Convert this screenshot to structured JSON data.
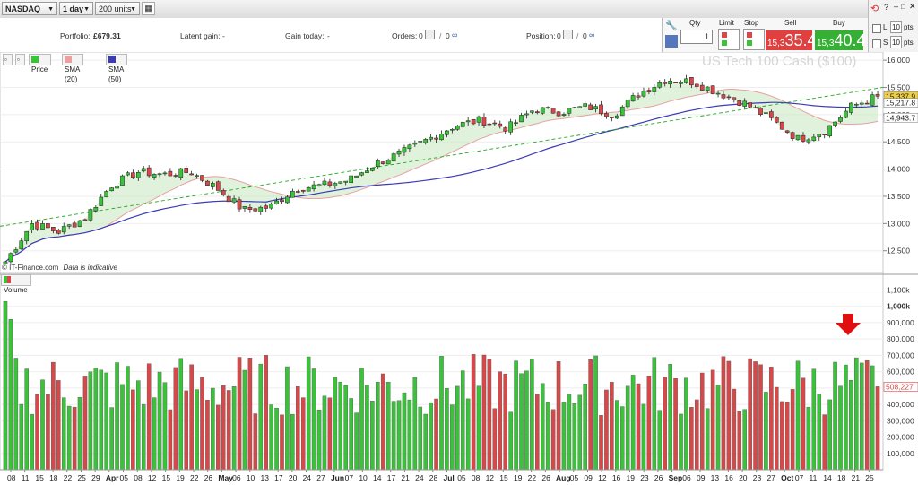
{
  "toolbar": {
    "market": "NASDAQ",
    "interval": "1 day",
    "units": "200 units"
  },
  "portfolio_row": {
    "portfolio_label": "Portfolio:",
    "portfolio_value": "£679.31",
    "latent_gain_label": "Latent gain:",
    "latent_gain_value": "-",
    "gain_today_label": "Gain today:",
    "gain_today_value": "-",
    "orders_label": "Orders:",
    "orders_count": "0",
    "orders_extra": "0",
    "position_label": "Position:",
    "position_count": "0",
    "position_extra": "0"
  },
  "trade_panel": {
    "qty_label": "Qty",
    "qty_value": "1",
    "limit_label": "Limit",
    "stop_label": "Stop",
    "sell_label": "Sell",
    "sell_small": "15,3",
    "sell_big": "35.4",
    "buy_label": "Buy",
    "buy_small": "15,3",
    "buy_big": "40.4"
  },
  "right_controls": {
    "l_label": "L",
    "l_value": "10",
    "l_unit": "pts",
    "s_label": "S",
    "s_value": "10",
    "s_unit": "pts"
  },
  "legend": {
    "price": "Price",
    "sma20": "SMA (20)",
    "sma50": "SMA (50)",
    "volume": "Volume"
  },
  "instrument_title": "US Tech 100 Cash ($100)",
  "attribution": "© IT-Finance.com",
  "indicative_note": "Data is indicative",
  "colors": {
    "up": "#39c339",
    "down": "#d94848",
    "sma20": "#e8a0a0",
    "sma50": "#3b3bb4",
    "trend": "#22aa22",
    "sell_bg": "#e04040",
    "buy_bg": "#35b035"
  },
  "price_axis": {
    "labels": [
      "16,000",
      "15,500",
      "15,000",
      "14,500",
      "14,000",
      "13,500",
      "13,000",
      "12,500"
    ],
    "values": [
      16000,
      15500,
      15000,
      14500,
      14000,
      13500,
      13000,
      12500
    ],
    "range": [
      12100,
      16150
    ],
    "markers": [
      {
        "label": "15,337.9",
        "value": 15337.9,
        "color": "#f0d040"
      },
      {
        "label": "15,217.8",
        "value": 15217.8,
        "color": "#ffffff"
      },
      {
        "label": "14,943.7",
        "value": 14943.7,
        "color": "#ffffff"
      }
    ]
  },
  "volume_axis": {
    "labels": [
      "1,100k",
      "1,000k",
      "900,000",
      "800,000",
      "700,000",
      "600,000",
      "500,000",
      "400,000",
      "300,000",
      "200,000",
      "100,000"
    ],
    "values": [
      1100000,
      1000000,
      900000,
      800000,
      700000,
      600000,
      500000,
      400000,
      300000,
      200000,
      100000
    ],
    "range": [
      0,
      1130000
    ],
    "marker": {
      "label": "508,227",
      "value": 508227
    }
  },
  "x_axis": {
    "labels": [
      "08",
      "11",
      "15",
      "18",
      "22",
      "25",
      "29",
      "Apr",
      "05",
      "08",
      "12",
      "15",
      "19",
      "22",
      "26",
      "May",
      "06",
      "10",
      "13",
      "17",
      "20",
      "24",
      "27",
      "Jun",
      "07",
      "10",
      "14",
      "17",
      "21",
      "24",
      "28",
      "Jul",
      "05",
      "08",
      "12",
      "15",
      "19",
      "22",
      "26",
      "Aug",
      "05",
      "09",
      "12",
      "16",
      "19",
      "23",
      "26",
      "Sep",
      "06",
      "09",
      "13",
      "16",
      "20",
      "23",
      "27",
      "Oct",
      "07",
      "11",
      "14",
      "18",
      "21",
      "25"
    ],
    "bold": [
      "Apr",
      "May",
      "Jun",
      "Jul",
      "Aug",
      "Sep",
      "Oct"
    ]
  },
  "chart_data": {
    "type": "candlestick",
    "title": "US Tech 100 Cash ($100)",
    "period": "1 day",
    "x_range": [
      "08 Mar",
      "25 Oct"
    ],
    "closes_weekly_approx": [
      {
        "week": "08 Mar",
        "value": 12300
      },
      {
        "week": "15 Mar",
        "value": 13000
      },
      {
        "week": "22 Mar",
        "value": 12850
      },
      {
        "week": "29 Mar",
        "value": 13100
      },
      {
        "week": "05 Apr",
        "value": 13700
      },
      {
        "week": "12 Apr",
        "value": 13950
      },
      {
        "week": "19 Apr",
        "value": 13900
      },
      {
        "week": "26 Apr",
        "value": 13950
      },
      {
        "week": "03 May",
        "value": 13650
      },
      {
        "week": "10 May",
        "value": 13250
      },
      {
        "week": "17 May",
        "value": 13300
      },
      {
        "week": "24 May",
        "value": 13650
      },
      {
        "week": "01 Jun",
        "value": 13700
      },
      {
        "week": "07 Jun",
        "value": 13800
      },
      {
        "week": "14 Jun",
        "value": 14100
      },
      {
        "week": "21 Jun",
        "value": 14300
      },
      {
        "week": "28 Jun",
        "value": 14550
      },
      {
        "week": "05 Jul",
        "value": 14800
      },
      {
        "week": "12 Jul",
        "value": 14900
      },
      {
        "week": "19 Jul",
        "value": 14750
      },
      {
        "week": "26 Jul",
        "value": 15100
      },
      {
        "week": "02 Aug",
        "value": 15050
      },
      {
        "week": "09 Aug",
        "value": 15150
      },
      {
        "week": "16 Aug",
        "value": 15000
      },
      {
        "week": "23 Aug",
        "value": 15400
      },
      {
        "week": "30 Aug",
        "value": 15650
      },
      {
        "week": "06 Sep",
        "value": 15600
      },
      {
        "week": "13 Sep",
        "value": 15400
      },
      {
        "week": "20 Sep",
        "value": 15200
      },
      {
        "week": "27 Sep",
        "value": 14900
      },
      {
        "week": "04 Oct",
        "value": 14550
      },
      {
        "week": "11 Oct",
        "value": 14700
      },
      {
        "week": "18 Oct",
        "value": 15150
      },
      {
        "week": "25 Oct",
        "value": 15340
      }
    ],
    "last_price": 15337.9,
    "sma20_last": 14943.7,
    "sma50_last": 15217.8,
    "volume_last": 508227,
    "ylim": [
      12100,
      16150
    ],
    "volume_ylim": [
      0,
      1130000
    ]
  }
}
